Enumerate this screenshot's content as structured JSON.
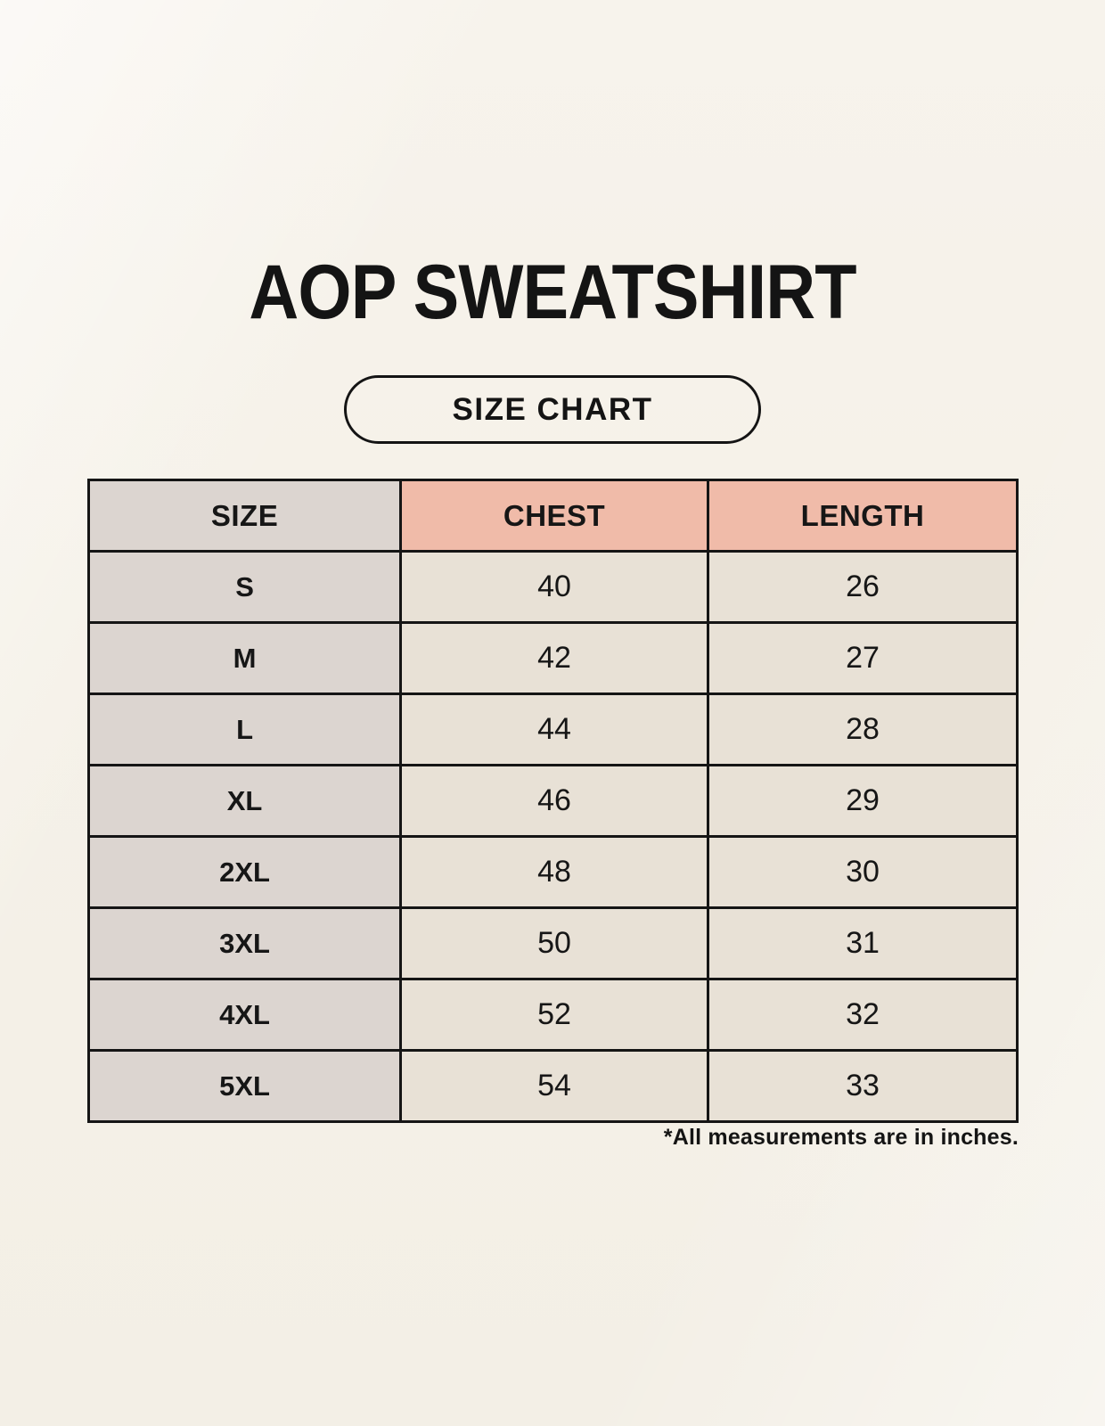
{
  "page": {
    "title": "AOP SWEATSHIRT",
    "badge": "SIZE CHART",
    "footnote": "*All measurements are in inches."
  },
  "colors": {
    "background": "#f5f1e8",
    "size_header_bg": "#dcd5d0",
    "measure_header_bg": "#f0bba9",
    "size_column_bg": "#dcd5d0",
    "value_cell_bg": "#e8e1d6",
    "border": "#151515",
    "text": "#141414"
  },
  "chart_data": {
    "type": "table",
    "title": "AOP SWEATSHIRT",
    "subtitle": "SIZE CHART",
    "columns": [
      "SIZE",
      "CHEST",
      "LENGTH"
    ],
    "rows": [
      [
        "S",
        40,
        26
      ],
      [
        "M",
        42,
        27
      ],
      [
        "L",
        44,
        28
      ],
      [
        "XL",
        46,
        29
      ],
      [
        "2XL",
        48,
        30
      ],
      [
        "3XL",
        50,
        31
      ],
      [
        "4XL",
        52,
        32
      ],
      [
        "5XL",
        54,
        33
      ]
    ],
    "units": "inches",
    "note": "*All measurements are in inches."
  }
}
